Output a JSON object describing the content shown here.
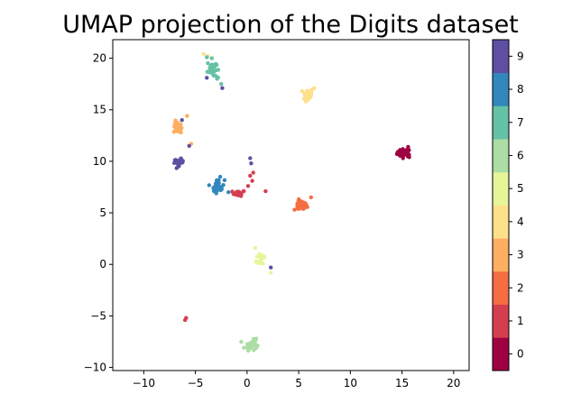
{
  "chart_data": {
    "type": "scatter",
    "title": "UMAP projection of the Digits dataset",
    "xlabel": "",
    "ylabel": "",
    "xlim": [
      -13,
      21.5
    ],
    "ylim": [
      -10.3,
      21.8
    ],
    "xticks": [
      -10,
      -5,
      0,
      5,
      10,
      15,
      20
    ],
    "yticks": [
      -10,
      -5,
      0,
      5,
      10,
      15,
      20
    ],
    "grid": false,
    "colorbar": {
      "ticks": [
        "0",
        "1",
        "2",
        "3",
        "4",
        "5",
        "6",
        "7",
        "8",
        "9"
      ],
      "colors": [
        "#9e0142",
        "#d53e4f",
        "#f46d43",
        "#fdae61",
        "#fee08b",
        "#e6f598",
        "#abdda4",
        "#66c2a5",
        "#3288bd",
        "#5e4fa2"
      ]
    },
    "clusters": [
      {
        "digit": 0,
        "center": [
          15.2,
          10.8
        ],
        "spread": [
          0.6,
          0.35
        ],
        "count": 42,
        "points": [
          [
            14.6,
            10.9
          ],
          [
            15.6,
            11.4
          ],
          [
            15.7,
            10.4
          ]
        ]
      },
      {
        "digit": 1,
        "center": [
          -0.8,
          6.9
        ],
        "spread": [
          0.55,
          0.25
        ],
        "count": 18,
        "points": [
          [
            0.6,
            8.9
          ],
          [
            0.5,
            8.1
          ],
          [
            0.1,
            7.6
          ],
          [
            0.3,
            8.6
          ],
          [
            1.8,
            7.1
          ],
          [
            -6.0,
            -5.4
          ],
          [
            -5.9,
            -5.2
          ]
        ]
      },
      {
        "digit": 2,
        "center": [
          5.2,
          5.7
        ],
        "spread": [
          0.55,
          0.45
        ],
        "count": 35,
        "points": [
          [
            6.2,
            6.5
          ],
          [
            4.6,
            5.3
          ]
        ]
      },
      {
        "digit": 3,
        "center": [
          -6.7,
          13.3
        ],
        "spread": [
          0.35,
          0.55
        ],
        "count": 20,
        "points": [
          [
            -5.8,
            14.4
          ],
          [
            -5.4,
            11.7
          ],
          [
            -6.4,
            12.8
          ]
        ]
      },
      {
        "digit": 4,
        "center": [
          5.9,
          16.5
        ],
        "spread": [
          0.45,
          0.55
        ],
        "count": 28,
        "points": [
          [
            -4.2,
            20.4
          ],
          [
            -3.8,
            20.2
          ],
          [
            6.5,
            17.1
          ],
          [
            5.7,
            15.8
          ]
        ]
      },
      {
        "digit": 5,
        "center": [
          1.4,
          0.6
        ],
        "spread": [
          0.45,
          0.7
        ],
        "count": 22,
        "points": [
          [
            2.3,
            -0.8
          ],
          [
            0.8,
            1.6
          ]
        ]
      },
      {
        "digit": 6,
        "center": [
          0.4,
          -7.8
        ],
        "spread": [
          0.5,
          0.45
        ],
        "count": 30,
        "points": [
          [
            0.9,
            -7.2
          ],
          [
            -0.3,
            -8.1
          ]
        ]
      },
      {
        "digit": 7,
        "center": [
          -3.4,
          19.0
        ],
        "spread": [
          0.4,
          0.8
        ],
        "count": 30,
        "points": [
          [
            -2.9,
            18.0
          ],
          [
            -3.9,
            20.1
          ],
          [
            -2.5,
            17.5
          ]
        ]
      },
      {
        "digit": 8,
        "center": [
          -2.8,
          7.6
        ],
        "spread": [
          0.55,
          0.6
        ],
        "count": 32,
        "points": [
          [
            -3.2,
            7.1
          ],
          [
            -1.8,
            7.0
          ],
          [
            -2.6,
            8.5
          ]
        ]
      },
      {
        "digit": 9,
        "center": [
          -6.6,
          9.9
        ],
        "spread": [
          0.4,
          0.3
        ],
        "count": 32,
        "points": [
          [
            -3.9,
            18.1
          ],
          [
            -2.4,
            17.1
          ],
          [
            -6.3,
            14.0
          ],
          [
            -5.6,
            11.5
          ],
          [
            0.3,
            10.3
          ],
          [
            0.4,
            9.8
          ],
          [
            2.3,
            -0.3
          ]
        ]
      }
    ]
  }
}
